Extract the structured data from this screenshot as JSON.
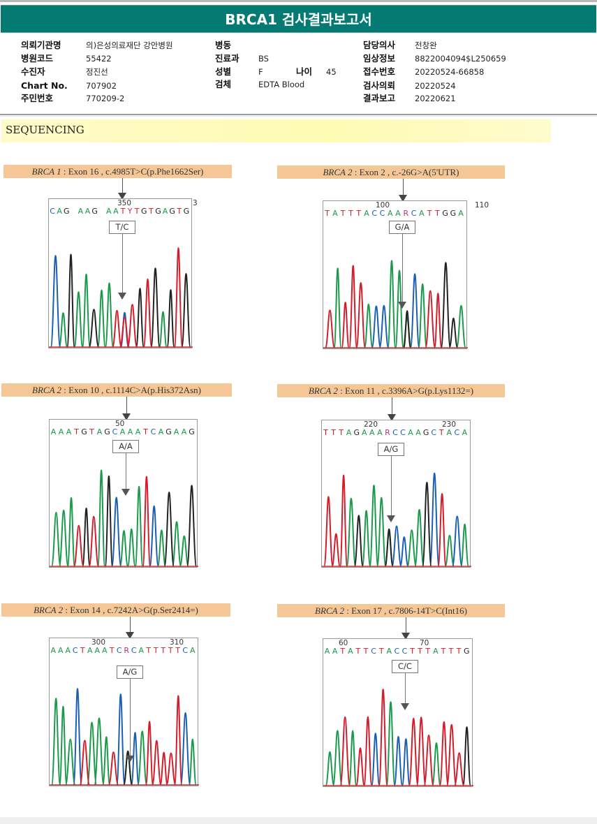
{
  "report": {
    "title": "BRCA1 검사결과보고서",
    "left_fields": [
      {
        "label": "의뢰기관명",
        "value": "의)은성의료재단 강안병원"
      },
      {
        "label": "병원코드",
        "value": "55422"
      },
      {
        "label": "수진자",
        "value": "정진선"
      },
      {
        "label": "Chart No.",
        "value": "707902"
      },
      {
        "label": "주민번호",
        "value": "770209-2"
      }
    ],
    "middle_fields": [
      {
        "label": "병동",
        "value": ""
      },
      {
        "label": "진료과",
        "value": "BS"
      },
      {
        "label": "성별",
        "value": "F"
      },
      {
        "label": "검체",
        "value": "EDTA Blood"
      }
    ],
    "age": {
      "label": "나이",
      "value": "45"
    },
    "right_fields": [
      {
        "label": "담당의사",
        "value": "전창완"
      },
      {
        "label": "임상정보",
        "value": "8822004094$L250659"
      },
      {
        "label": "접수번호",
        "value": "20220524-66858"
      },
      {
        "label": "검사의뢰",
        "value": "20220524"
      },
      {
        "label": "결과보고",
        "value": "20220621"
      }
    ]
  },
  "section": {
    "title": "SEQUENCING"
  },
  "colors": {
    "A": "#1a9a4a",
    "C": "#1a5fb4",
    "G": "#222222",
    "T": "#d41c2a",
    "R": "#c0307a",
    "Y": "#c0307a",
    "header": "#047a72",
    "label_bg": "#f6c796"
  },
  "variants": [
    {
      "gene": "BRCA 1",
      "rest": " : Exon 16 , c.4985T>C(p.Phe1662Ser)",
      "positions": [
        "350",
        "3"
      ],
      "sequence": "CAG AAG AATYTGTGAGTG",
      "call": "T/C"
    },
    {
      "gene": "BRCA 2",
      "rest": " : Exon 2 , c.-26G>A(5'UTR)",
      "positions": [
        "100",
        "110"
      ],
      "sequence": "TATTTACCAARCATTGGA",
      "call": "G/A"
    },
    {
      "gene": "BRCA 2",
      "rest": " : Exon 10 , c.1114C>A(p.His372Asn)",
      "positions": [
        "50"
      ],
      "sequence": "AAATGTAGCAAATCAGAAG",
      "call": "A/A"
    },
    {
      "gene": "BRCA 2",
      "rest": " : Exon 11 , c.3396A>G(p.Lys1132=)",
      "positions": [
        "220",
        "230"
      ],
      "sequence": "TTTAGAAARCCAAGCTACA",
      "call": "A/G"
    },
    {
      "gene": "BRCA 2",
      "rest": " : Exon 14 , c.7242A>G(p.Ser2414=)",
      "positions": [
        "300",
        "310"
      ],
      "sequence": "AAACTAAATCRCATTTTTCA",
      "call": "A/G"
    },
    {
      "gene": "BRCA 2",
      "rest": " : Exon 17 , c.7806-14T>C(Int16)",
      "positions": [
        "60",
        "70"
      ],
      "sequence": "AATATTCTACCTTTATTTG",
      "call": "C/C"
    }
  ]
}
